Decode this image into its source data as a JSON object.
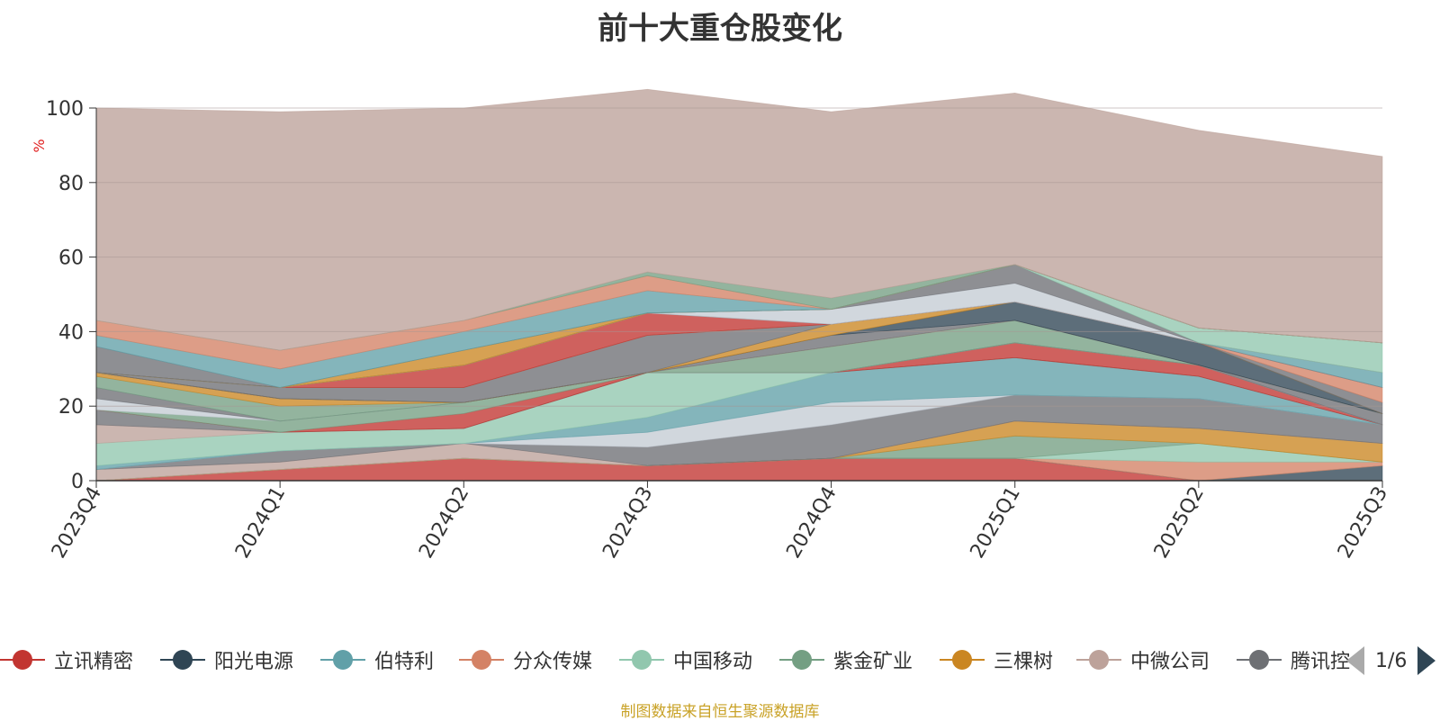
{
  "chart_data": {
    "type": "area",
    "stacked": true,
    "title": "前十大重仓股变化",
    "ylabel": "%",
    "xlabel": "",
    "ylim": [
      0,
      100
    ],
    "yticks": [
      0,
      20,
      40,
      60,
      80,
      100
    ],
    "categories": [
      "2023Q4",
      "2024Q1",
      "2024Q2",
      "2024Q3",
      "2024Q4",
      "2025Q1",
      "2025Q2",
      "2025Q3"
    ],
    "series": [
      {
        "name": "立讯精密",
        "color": "#c23531",
        "values": [
          0,
          3,
          6,
          4,
          6,
          6,
          0,
          0
        ]
      },
      {
        "name": "阳光电源",
        "color": "#2f4554",
        "values": [
          0,
          0,
          0,
          0,
          0,
          0,
          0,
          4
        ]
      },
      {
        "name": "伯特利",
        "color": "#61a0a8",
        "values": [
          0,
          0,
          0,
          0,
          0,
          0,
          0,
          0
        ]
      },
      {
        "name": "分众传媒",
        "color": "#d48265",
        "values": [
          0,
          0,
          0,
          0,
          0,
          0,
          5,
          1
        ]
      },
      {
        "name": "中国移动",
        "color": "#91c7ae",
        "values": [
          0,
          0,
          0,
          0,
          0,
          0,
          5,
          0
        ]
      },
      {
        "name": "紫金矿业",
        "color": "#749f83",
        "values": [
          0,
          0,
          0,
          0,
          0,
          6,
          0,
          0
        ]
      },
      {
        "name": "三棵树",
        "color": "#ca8622",
        "values": [
          0,
          0,
          0,
          0,
          0,
          4,
          4,
          5
        ]
      },
      {
        "name": "中微公司",
        "color": "#bda29a",
        "values": [
          3,
          2,
          4,
          0,
          0,
          0,
          0,
          0
        ]
      },
      {
        "name": "腾讯控股",
        "color": "#6e7074",
        "values": [
          0,
          3,
          0,
          5,
          9,
          7,
          8,
          5
        ]
      },
      {
        "name": "",
        "color": "#c4ccd3",
        "values": [
          0,
          0,
          0,
          4,
          6,
          0,
          0,
          0
        ]
      },
      {
        "name": "",
        "color": "#61a0a8",
        "values": [
          1,
          0,
          0,
          4,
          8,
          10,
          6,
          0
        ]
      },
      {
        "name": "",
        "color": "#91c7ae",
        "values": [
          6,
          5,
          4,
          12,
          0,
          0,
          0,
          0
        ]
      },
      {
        "name": "",
        "color": "#bda29a",
        "values": [
          5,
          0,
          0,
          0,
          0,
          0,
          0,
          0
        ]
      },
      {
        "name": "",
        "color": "#6e7074",
        "values": [
          4,
          0,
          0,
          0,
          0,
          0,
          0,
          0
        ]
      },
      {
        "name": "",
        "color": "#c23531",
        "values": [
          0,
          0,
          4,
          0,
          0,
          4,
          3,
          0
        ]
      },
      {
        "name": "",
        "color": "#749f83",
        "values": [
          0,
          3,
          3,
          0,
          0,
          0,
          0,
          0
        ]
      },
      {
        "name": "",
        "color": "#c4ccd3",
        "values": [
          3,
          0,
          0,
          0,
          0,
          0,
          0,
          0
        ]
      },
      {
        "name": "",
        "color": "#6e7074",
        "values": [
          3,
          0,
          0,
          0,
          0,
          0,
          0,
          3
        ]
      },
      {
        "name": "",
        "color": "#749f83",
        "values": [
          3,
          4,
          0,
          0,
          7,
          6,
          0,
          0
        ]
      },
      {
        "name": "",
        "color": "#ca8622",
        "values": [
          1,
          2,
          0,
          0,
          0,
          0,
          0,
          0
        ]
      },
      {
        "name": "",
        "color": "#c4ccd3",
        "values": [
          0,
          0,
          0,
          0,
          0,
          0,
          0,
          0
        ]
      },
      {
        "name": "",
        "color": "#6e7074",
        "values": [
          0,
          0,
          0,
          0,
          3,
          0,
          0,
          0
        ]
      },
      {
        "name": "",
        "color": "#2f4554",
        "values": [
          0,
          0,
          0,
          0,
          0,
          5,
          6,
          0
        ]
      },
      {
        "name": "",
        "color": "#ca8622",
        "values": [
          0,
          0,
          0,
          0,
          3,
          0,
          0,
          0
        ]
      },
      {
        "name": "",
        "color": "#6e7074",
        "values": [
          0,
          3,
          4,
          10,
          0,
          0,
          0,
          3
        ]
      },
      {
        "name": "",
        "color": "#d48265",
        "values": [
          0,
          0,
          0,
          0,
          0,
          0,
          0,
          4
        ]
      },
      {
        "name": "",
        "color": "#c23531",
        "values": [
          0,
          0,
          6,
          6,
          0,
          0,
          0,
          0
        ]
      },
      {
        "name": "",
        "color": "#61a0a8",
        "values": [
          0,
          0,
          0,
          0,
          0,
          0,
          0,
          4
        ]
      },
      {
        "name": "",
        "color": "#c4ccd3",
        "values": [
          0,
          0,
          0,
          0,
          4,
          5,
          0,
          0
        ]
      },
      {
        "name": "",
        "color": "#6e7074",
        "values": [
          0,
          0,
          0,
          0,
          0,
          5,
          0,
          0
        ]
      },
      {
        "name": "",
        "color": "#91c7ae",
        "values": [
          0,
          0,
          0,
          0,
          0,
          0,
          4,
          8
        ]
      },
      {
        "name": "",
        "color": "#ca8622",
        "values": [
          0,
          0,
          4,
          0,
          0,
          0,
          0,
          0
        ]
      },
      {
        "name": "",
        "color": "#6e7074",
        "values": [
          7,
          0,
          0,
          0,
          0,
          0,
          0,
          0
        ]
      },
      {
        "name": "",
        "color": "#61a0a8",
        "values": [
          3,
          5,
          5,
          6,
          0,
          0,
          0,
          0
        ]
      },
      {
        "name": "",
        "color": "#d48265",
        "values": [
          4,
          5,
          3,
          4,
          0,
          0,
          0,
          0
        ]
      },
      {
        "name": "",
        "color": "#749f83",
        "values": [
          0,
          0,
          0,
          1,
          3,
          0,
          0,
          0
        ]
      },
      {
        "name": "",
        "color": "#bda29a",
        "values": [
          57,
          64,
          57,
          49,
          50,
          46,
          53,
          50
        ]
      }
    ]
  },
  "legend": {
    "page": "1/6"
  },
  "source_note": "制图数据来自恒生聚源数据库"
}
